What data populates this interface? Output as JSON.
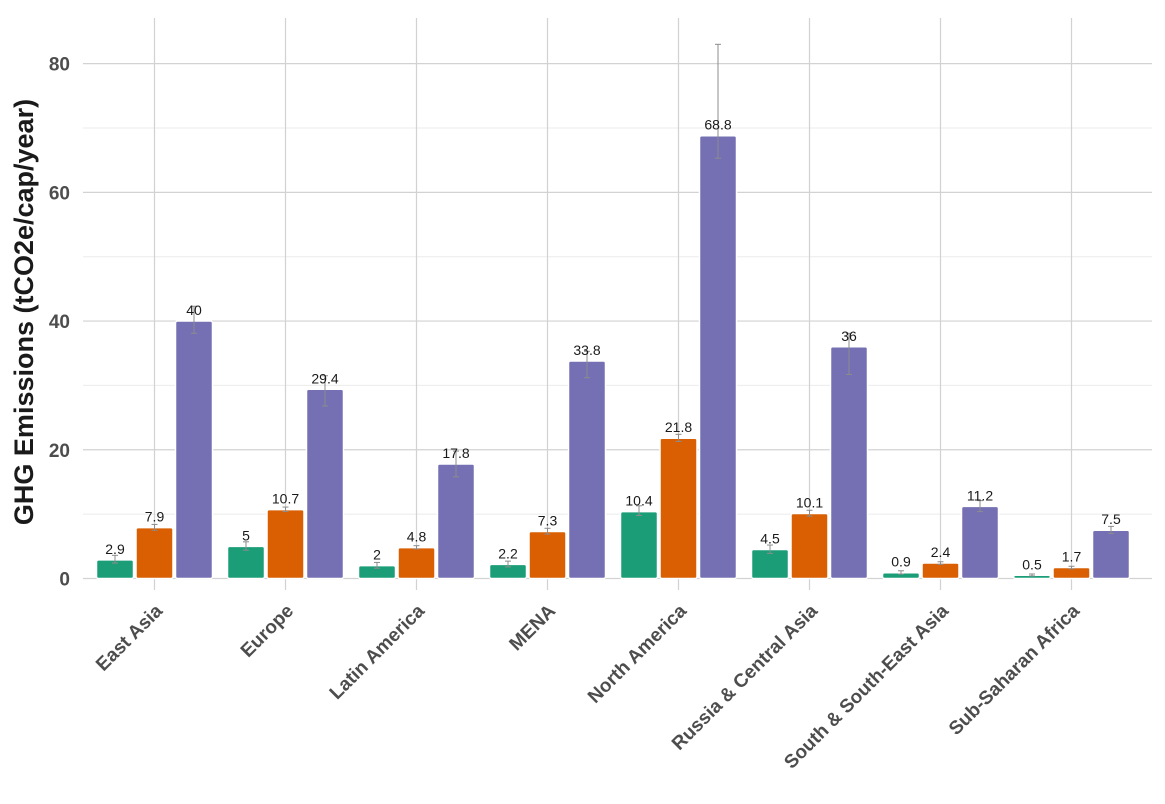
{
  "chart_data": {
    "type": "bar",
    "title": "",
    "xlabel": "",
    "ylabel": "GHG Emissions (tCO2e/cap/year)",
    "ylim": [
      -2.5,
      87
    ],
    "yticks": [
      0,
      20,
      40,
      60,
      80
    ],
    "grid": true,
    "legend": "none",
    "categories": [
      "East Asia",
      "Europe",
      "Latin America",
      "MENA",
      "North America",
      "Russia & Central Asia",
      "South & South-East Asia",
      "Sub-Saharan Africa"
    ],
    "series": [
      {
        "color": "#1b9e77",
        "values": [
          2.9,
          5,
          2,
          2.2,
          10.4,
          4.5,
          0.9,
          0.5
        ],
        "labels": [
          "2.9",
          "5",
          "2",
          "2.2",
          "10.4",
          "4.5",
          "0.9",
          "0.5"
        ],
        "err_low": [
          2.4,
          4.4,
          1.6,
          1.8,
          9.8,
          3.9,
          0.7,
          0.4
        ],
        "err_high": [
          3.6,
          5.7,
          2.5,
          2.7,
          11.3,
          5.2,
          1.2,
          0.7
        ]
      },
      {
        "color": "#d95f02",
        "values": [
          7.9,
          10.7,
          4.8,
          7.3,
          21.8,
          10.1,
          2.4,
          1.7
        ],
        "labels": [
          "7.9",
          "10.7",
          "4.8",
          "7.3",
          "21.8",
          "10.1",
          "2.4",
          "1.7"
        ],
        "err_low": [
          7.5,
          10.4,
          4.6,
          6.9,
          21.3,
          9.7,
          2.2,
          1.5
        ],
        "err_high": [
          8.4,
          11.1,
          5.1,
          7.8,
          22.4,
          10.6,
          2.6,
          1.9
        ]
      },
      {
        "color": "#7570b3",
        "values": [
          40,
          29.4,
          17.8,
          33.8,
          68.8,
          36,
          11.2,
          7.5
        ],
        "labels": [
          "40",
          "29.4",
          "17.8",
          "33.8",
          "68.8",
          "36",
          "11.2",
          "7.5"
        ],
        "err_low": [
          38.1,
          26.8,
          15.8,
          31.2,
          65.3,
          31.7,
          10.4,
          7.0
        ],
        "err_high": [
          42.3,
          31.5,
          19.8,
          35.3,
          83.0,
          38.1,
          12.1,
          8.1
        ]
      }
    ]
  }
}
